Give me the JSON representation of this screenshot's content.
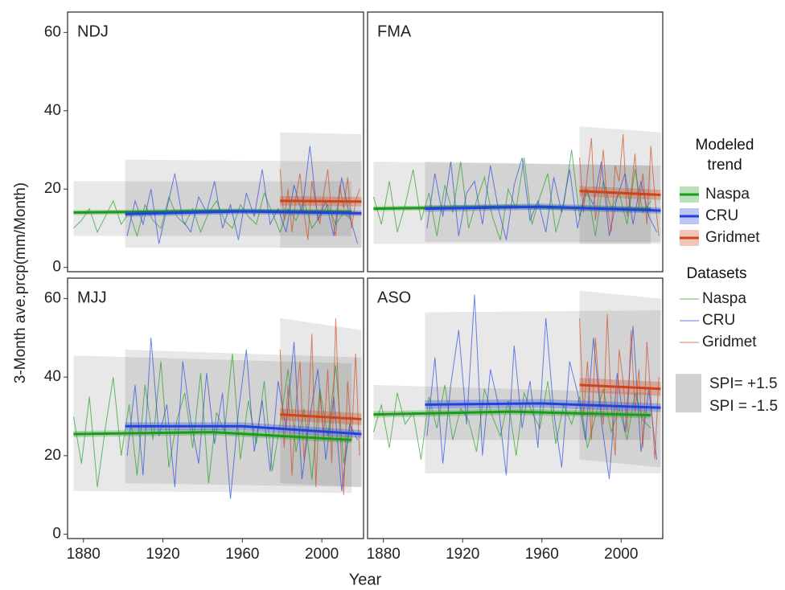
{
  "x_label": "Year",
  "y_label": "3-Month ave.prcp(mm/Month)",
  "legend": {
    "trend_title": "Modeled trend",
    "dataset_title": "Datasets",
    "names": [
      "Naspa",
      "CRU",
      "Gridmet"
    ],
    "colors": [
      "#1b9a1b",
      "#2242dc",
      "#cf4318"
    ],
    "spi_labels": [
      "SPI= +1.5",
      "SPI = -1.5"
    ]
  },
  "chart_data": [
    {
      "type": "line",
      "title": "NDJ",
      "xlim": [
        1872,
        2021
      ],
      "ylim": [
        -1.1,
        65.2
      ],
      "yticks": [
        0,
        20,
        40,
        60
      ],
      "spi_bands": [
        {
          "x": [
            1875,
            2015
          ],
          "upper": [
            22,
            22
          ],
          "lower": [
            8,
            8
          ]
        },
        {
          "x": [
            1901,
            2020
          ],
          "upper": [
            27.5,
            27
          ],
          "lower": [
            5,
            5
          ]
        },
        {
          "x": [
            1979,
            2020
          ],
          "upper": [
            34.5,
            34
          ],
          "lower": [
            5,
            5
          ]
        }
      ],
      "series": [
        {
          "x": [
            1875,
            1879,
            1883,
            1887,
            1891,
            1895,
            1899,
            1903,
            1907,
            1911,
            1915,
            1919,
            1923,
            1927,
            1931,
            1935,
            1939,
            1943,
            1947,
            1951,
            1955,
            1959,
            1963,
            1967,
            1971,
            1975,
            1979,
            1983,
            1987,
            1991,
            1995,
            1999,
            2003,
            2007,
            2011,
            2015
          ],
          "values": [
            10,
            12,
            15,
            9,
            13,
            17,
            11,
            14,
            8,
            16,
            12,
            10,
            18,
            13,
            11,
            15,
            9,
            14,
            17,
            12,
            10,
            16,
            13,
            11,
            19,
            14,
            9,
            15,
            12,
            17,
            10,
            13,
            16,
            11,
            14,
            12
          ]
        },
        {
          "x": [
            1902,
            1906,
            1910,
            1914,
            1918,
            1922,
            1926,
            1930,
            1934,
            1938,
            1942,
            1946,
            1950,
            1954,
            1958,
            1962,
            1966,
            1970,
            1974,
            1978,
            1982,
            1986,
            1990,
            1994,
            1998,
            2002,
            2006,
            2010,
            2014,
            2018
          ],
          "values": [
            8,
            17,
            11,
            20,
            6,
            15,
            24,
            12,
            9,
            18,
            14,
            22,
            10,
            16,
            7,
            19,
            13,
            25,
            11,
            15,
            9,
            21,
            14,
            31,
            12,
            17,
            8,
            23,
            13,
            6
          ]
        },
        {
          "x": [
            1979,
            1981,
            1983,
            1985,
            1987,
            1989,
            1991,
            1993,
            1995,
            1997,
            1999,
            2001,
            2003,
            2005,
            2007,
            2009,
            2011,
            2013,
            2015,
            2017,
            2019
          ],
          "values": [
            25,
            12,
            20,
            9,
            18,
            24,
            14,
            7,
            22,
            16,
            11,
            19,
            25,
            13,
            8,
            21,
            15,
            23,
            10,
            17,
            20
          ]
        }
      ],
      "trends": [
        {
          "x": [
            1875,
            1945,
            2015
          ],
          "values": [
            14,
            14.4,
            14.2
          ],
          "ci": 0.6
        },
        {
          "x": [
            1901,
            1960,
            2020
          ],
          "values": [
            13.6,
            14.3,
            13.8
          ],
          "ci": 0.7
        },
        {
          "x": [
            1979,
            2020
          ],
          "values": [
            17,
            16.8
          ],
          "ci": 1.2
        }
      ]
    },
    {
      "type": "line",
      "title": "FMA",
      "xlim": [
        1872,
        2021
      ],
      "ylim": [
        -1.1,
        65.2
      ],
      "spi_bands": [
        {
          "x": [
            1875,
            2015
          ],
          "upper": [
            27,
            26
          ],
          "lower": [
            6,
            6
          ]
        },
        {
          "x": [
            1901,
            2020
          ],
          "upper": [
            27,
            26
          ],
          "lower": [
            6.5,
            6.5
          ]
        },
        {
          "x": [
            1979,
            2020
          ],
          "upper": [
            36,
            34.5
          ],
          "lower": [
            6,
            6
          ]
        }
      ],
      "series": [
        {
          "x": [
            1875,
            1879,
            1883,
            1887,
            1891,
            1895,
            1899,
            1903,
            1907,
            1911,
            1915,
            1919,
            1923,
            1927,
            1931,
            1935,
            1939,
            1943,
            1947,
            1951,
            1955,
            1959,
            1963,
            1967,
            1971,
            1975,
            1979,
            1983,
            1987,
            1991,
            1995,
            1999,
            2003,
            2007,
            2011,
            2015
          ],
          "values": [
            18,
            11,
            22,
            9,
            16,
            25,
            12,
            19,
            8,
            21,
            14,
            27,
            10,
            17,
            23,
            13,
            7,
            20,
            15,
            28,
            11,
            18,
            24,
            9,
            16,
            30,
            13,
            20,
            8,
            22,
            15,
            19,
            11,
            25,
            14,
            17
          ]
        },
        {
          "x": [
            1902,
            1906,
            1910,
            1914,
            1918,
            1922,
            1926,
            1930,
            1934,
            1938,
            1942,
            1946,
            1950,
            1954,
            1958,
            1962,
            1966,
            1970,
            1974,
            1978,
            1982,
            1986,
            1990,
            1994,
            1998,
            2002,
            2006,
            2010,
            2014,
            2018
          ],
          "values": [
            10,
            24,
            13,
            27,
            8,
            19,
            22,
            11,
            26,
            15,
            7,
            21,
            28,
            12,
            17,
            9,
            23,
            14,
            25,
            10,
            20,
            16,
            27,
            8,
            18,
            24,
            11,
            22,
            13,
            9
          ]
        },
        {
          "x": [
            1979,
            1981,
            1983,
            1985,
            1987,
            1989,
            1991,
            1993,
            1995,
            1997,
            1999,
            2001,
            2003,
            2005,
            2007,
            2009,
            2011,
            2013,
            2015,
            2017,
            2019
          ],
          "values": [
            28,
            14,
            24,
            33,
            12,
            20,
            30,
            16,
            9,
            26,
            22,
            34,
            13,
            19,
            29,
            15,
            24,
            11,
            31,
            18,
            8
          ]
        }
      ],
      "trends": [
        {
          "x": [
            1875,
            1945,
            2015
          ],
          "values": [
            15,
            15.5,
            14.8
          ],
          "ci": 0.6
        },
        {
          "x": [
            1901,
            1960,
            2020
          ],
          "values": [
            15,
            15.5,
            14.5
          ],
          "ci": 0.8
        },
        {
          "x": [
            1979,
            2020
          ],
          "values": [
            19.5,
            18.5
          ],
          "ci": 1.3
        }
      ]
    },
    {
      "type": "line",
      "title": "MJJ",
      "xlim": [
        1872,
        2021
      ],
      "ylim": [
        -1.1,
        65.2
      ],
      "yticks": [
        0,
        20,
        40,
        60
      ],
      "xticks": [
        1880,
        1920,
        1960,
        2000
      ],
      "spi_bands": [
        {
          "x": [
            1875,
            2015
          ],
          "upper": [
            45.5,
            43.5
          ],
          "lower": [
            11,
            10.5
          ]
        },
        {
          "x": [
            1901,
            2020
          ],
          "upper": [
            47,
            45
          ],
          "lower": [
            13,
            12
          ]
        },
        {
          "x": [
            1979,
            2020
          ],
          "upper": [
            55,
            52
          ],
          "lower": [
            13,
            12
          ]
        }
      ],
      "series": [
        {
          "x": [
            1875,
            1879,
            1883,
            1887,
            1891,
            1895,
            1899,
            1903,
            1907,
            1911,
            1915,
            1919,
            1923,
            1927,
            1931,
            1935,
            1939,
            1943,
            1947,
            1951,
            1955,
            1959,
            1963,
            1967,
            1971,
            1975,
            1979,
            1983,
            1987,
            1991,
            1995,
            1999,
            2003,
            2007,
            2011,
            2015
          ],
          "values": [
            30,
            18,
            35,
            12,
            27,
            40,
            20,
            33,
            15,
            38,
            24,
            44,
            17,
            29,
            36,
            22,
            41,
            13,
            31,
            26,
            46,
            19,
            34,
            23,
            39,
            16,
            28,
            42,
            21,
            32,
            14,
            37,
            25,
            43,
            18,
            30
          ]
        },
        {
          "x": [
            1902,
            1906,
            1910,
            1914,
            1918,
            1922,
            1926,
            1930,
            1934,
            1938,
            1942,
            1946,
            1950,
            1954,
            1958,
            1962,
            1966,
            1970,
            1974,
            1978,
            1982,
            1986,
            1990,
            1994,
            1998,
            2002,
            2006,
            2010,
            2014,
            2018
          ],
          "values": [
            20,
            38,
            15,
            50,
            25,
            33,
            12,
            44,
            29,
            18,
            41,
            23,
            36,
            9,
            31,
            47,
            21,
            34,
            16,
            39,
            27,
            49,
            14,
            30,
            42,
            19,
            35,
            11,
            28,
            24
          ]
        },
        {
          "x": [
            1979,
            1981,
            1983,
            1985,
            1987,
            1989,
            1991,
            1993,
            1995,
            1997,
            1999,
            2001,
            2003,
            2005,
            2007,
            2009,
            2011,
            2013,
            2015,
            2017,
            2019
          ],
          "values": [
            47,
            22,
            38,
            15,
            33,
            44,
            19,
            29,
            51,
            12,
            36,
            25,
            42,
            18,
            55,
            27,
            10,
            39,
            24,
            46,
            20
          ]
        }
      ],
      "trends": [
        {
          "x": [
            1875,
            1945,
            2015
          ],
          "values": [
            25.5,
            26,
            24
          ],
          "ci": 0.8
        },
        {
          "x": [
            1901,
            1960,
            2020
          ],
          "values": [
            27.5,
            27.5,
            25.5
          ],
          "ci": 1
        },
        {
          "x": [
            1979,
            2020
          ],
          "values": [
            30.5,
            29.3
          ],
          "ci": 1.5
        }
      ]
    },
    {
      "type": "line",
      "title": "ASO",
      "xlim": [
        1872,
        2021
      ],
      "ylim": [
        -1.1,
        65.2
      ],
      "xticks": [
        1880,
        1920,
        1960,
        2000
      ],
      "spi_bands": [
        {
          "x": [
            1875,
            2015
          ],
          "upper": [
            38,
            36
          ],
          "lower": [
            24,
            24
          ]
        },
        {
          "x": [
            1901,
            2020
          ],
          "upper": [
            56.5,
            57
          ],
          "lower": [
            15.5,
            15.5
          ]
        },
        {
          "x": [
            1979,
            2020
          ],
          "upper": [
            62,
            60
          ],
          "lower": [
            19,
            17
          ]
        }
      ],
      "series": [
        {
          "x": [
            1875,
            1879,
            1883,
            1887,
            1891,
            1895,
            1899,
            1903,
            1907,
            1911,
            1915,
            1919,
            1923,
            1927,
            1931,
            1935,
            1939,
            1943,
            1947,
            1951,
            1955,
            1959,
            1963,
            1967,
            1971,
            1975,
            1979,
            1983,
            1987,
            1991,
            1995,
            1999,
            2003,
            2007,
            2011,
            2015
          ],
          "values": [
            26,
            33,
            22,
            36,
            28,
            31,
            19,
            35,
            27,
            38,
            24,
            32,
            29,
            21,
            37,
            30,
            25,
            34,
            20,
            36,
            31,
            27,
            39,
            23,
            33,
            28,
            35,
            22,
            30,
            37,
            26,
            32,
            24,
            36,
            29,
            27
          ]
        },
        {
          "x": [
            1902,
            1906,
            1910,
            1914,
            1918,
            1922,
            1926,
            1930,
            1934,
            1938,
            1942,
            1946,
            1950,
            1954,
            1958,
            1962,
            1966,
            1970,
            1974,
            1978,
            1982,
            1986,
            1990,
            1994,
            1998,
            2002,
            2006,
            2010,
            2014,
            2018
          ],
          "values": [
            25,
            45,
            18,
            38,
            52,
            28,
            61,
            20,
            42,
            33,
            15,
            48,
            27,
            39,
            22,
            55,
            31,
            17,
            44,
            36,
            24,
            50,
            29,
            14,
            41,
            26,
            53,
            21,
            37,
            19
          ]
        },
        {
          "x": [
            1979,
            1981,
            1983,
            1985,
            1987,
            1989,
            1991,
            1993,
            1995,
            1997,
            1999,
            2001,
            2003,
            2005,
            2007,
            2009,
            2011,
            2013,
            2015,
            2017,
            2019
          ],
          "values": [
            55,
            30,
            44,
            24,
            50,
            36,
            28,
            56,
            33,
            20,
            47,
            39,
            26,
            52,
            31,
            42,
            22,
            49,
            35,
            19,
            40
          ]
        }
      ],
      "trends": [
        {
          "x": [
            1875,
            1945,
            2015
          ],
          "values": [
            30.5,
            31.2,
            30.3
          ],
          "ci": 0.8
        },
        {
          "x": [
            1901,
            1960,
            2020
          ],
          "values": [
            33,
            33.3,
            32.2
          ],
          "ci": 1.1
        },
        {
          "x": [
            1979,
            2020
          ],
          "values": [
            38,
            37
          ],
          "ci": 1.8
        }
      ]
    }
  ]
}
